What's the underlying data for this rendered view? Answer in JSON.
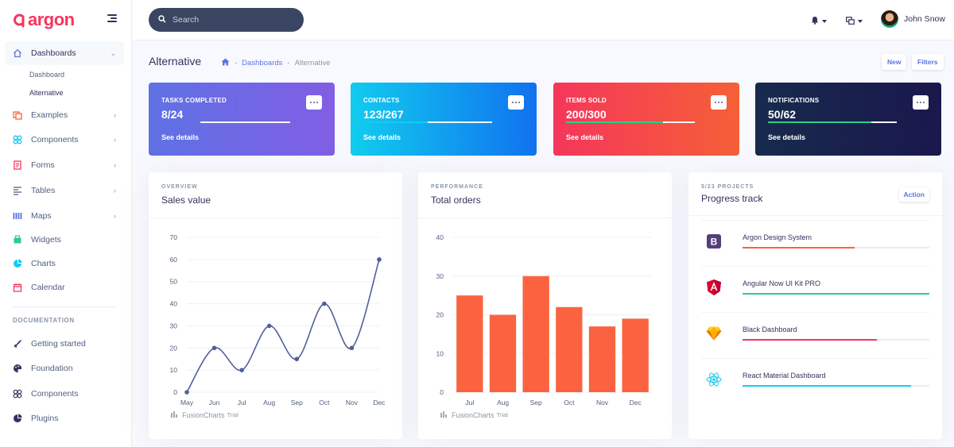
{
  "brand": {
    "name": "argon",
    "color": "#f5365c"
  },
  "sidebar": {
    "items": [
      {
        "label": "Dashboards",
        "icon": "house-icon",
        "color": "#5e72e4"
      },
      {
        "label": "Examples",
        "icon": "ship-icon",
        "color": "#fb6340"
      },
      {
        "label": "Components",
        "icon": "ui-04-icon",
        "color": "#11cdef"
      },
      {
        "label": "Forms",
        "icon": "single-copy-icon",
        "color": "#f5365c"
      },
      {
        "label": "Tables",
        "icon": "align-left-icon",
        "color": "#525f7f"
      },
      {
        "label": "Maps",
        "icon": "map-big-icon",
        "color": "#5e72e4"
      },
      {
        "label": "Widgets",
        "icon": "archive-icon",
        "color": "#2dce89"
      },
      {
        "label": "Charts",
        "icon": "chart-pie-icon",
        "color": "#11cdef"
      },
      {
        "label": "Calendar",
        "icon": "calendar-icon",
        "color": "#f5365c"
      }
    ],
    "sub_items": [
      "Dashboard",
      "Alternative"
    ],
    "doc_heading": "DOCUMENTATION",
    "doc_items": [
      {
        "label": "Getting started",
        "icon": "spaceship-icon"
      },
      {
        "label": "Foundation",
        "icon": "palette-icon"
      },
      {
        "label": "Components",
        "icon": "ui-04-icon"
      },
      {
        "label": "Plugins",
        "icon": "chart-pie-icon"
      }
    ]
  },
  "topbar": {
    "search_placeholder": "Search",
    "user_name": "John Snow"
  },
  "header": {
    "title": "Alternative",
    "breadcrumb": [
      "Dashboards",
      "Alternative"
    ],
    "buttons": [
      "New",
      "Filters"
    ]
  },
  "stats": [
    {
      "label": "TASKS COMPLETED",
      "value": "8/24",
      "progress": 0.3,
      "bar_color": "#5e72e4",
      "link": "See details"
    },
    {
      "label": "CONTACTS",
      "value": "123/267",
      "progress": 0.5,
      "bar_color": "#11cdef",
      "link": "See details"
    },
    {
      "label": "ITEMS SOLD",
      "value": "200/300",
      "progress": 0.75,
      "bar_color": "#2dce89",
      "link": "See details"
    },
    {
      "label": "NOTIFICATIONS",
      "value": "50/62",
      "progress": 0.8,
      "bar_color": "#2dce89",
      "link": "See details"
    }
  ],
  "sales_panel": {
    "overline": "OVERVIEW",
    "title": "Sales value",
    "credit": "FusionCharts",
    "credit_small": "Trial"
  },
  "orders_panel": {
    "overline": "PERFORMANCE",
    "title": "Total orders",
    "credit": "FusionCharts",
    "credit_small": "Trial"
  },
  "progress_panel": {
    "overline": "5/23 PROJECTS",
    "title": "Progress track",
    "action": "Action",
    "projects": [
      {
        "name": "Argon Design System",
        "progress": 0.6,
        "color": "#fb6340",
        "icon": "bootstrap-icon"
      },
      {
        "name": "Angular Now UI Kit PRO",
        "progress": 1.0,
        "color": "#2dce89",
        "icon": "angular-icon"
      },
      {
        "name": "Black Dashboard",
        "progress": 0.72,
        "color": "#f5365c",
        "icon": "sketch-icon"
      },
      {
        "name": "React Material Dashboard",
        "progress": 0.9,
        "color": "#11cdef",
        "icon": "react-icon"
      }
    ]
  },
  "chart_data": [
    {
      "type": "line",
      "categories": [
        "May",
        "Jun",
        "Jul",
        "Aug",
        "Sep",
        "Oct",
        "Nov",
        "Dec"
      ],
      "values": [
        0,
        20,
        10,
        30,
        15,
        40,
        20,
        60
      ],
      "yticks": [
        0,
        10,
        20,
        30,
        40,
        50,
        60,
        70
      ],
      "ylim": [
        0,
        70
      ],
      "color": "#525f9b"
    },
    {
      "type": "bar",
      "categories": [
        "Jul",
        "Aug",
        "Sep",
        "Oct",
        "Nov",
        "Dec"
      ],
      "values": [
        25,
        20,
        30,
        22,
        17,
        19
      ],
      "yticks": [
        0,
        10,
        20,
        30,
        40
      ],
      "ylim": [
        0,
        40
      ],
      "color": "#fb6340"
    }
  ]
}
